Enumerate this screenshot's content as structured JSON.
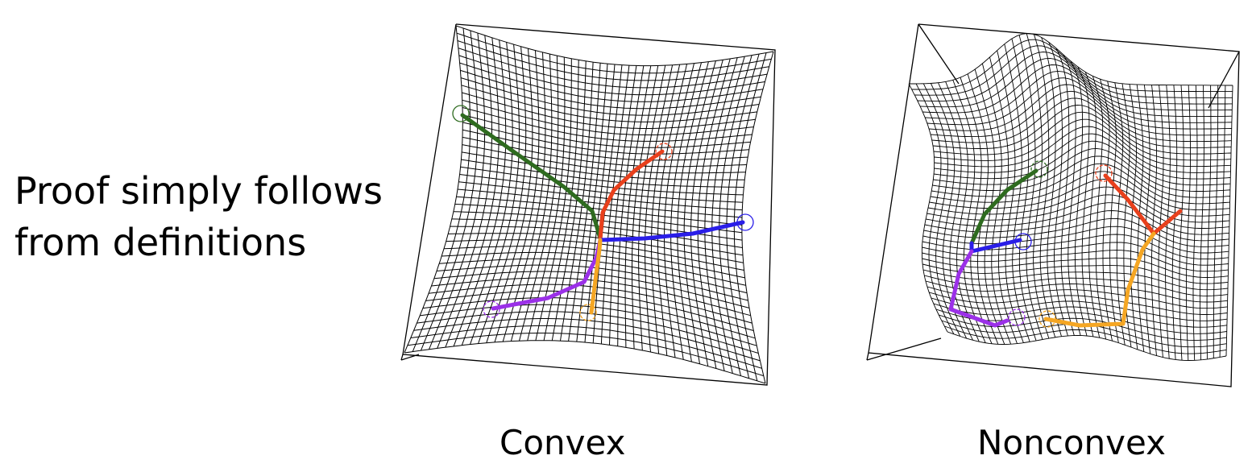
{
  "headline": {
    "line1": "Proof simply follows",
    "line2": "from definitions"
  },
  "panels": [
    {
      "caption": "Convex",
      "paths": [
        {
          "color": "#2e6b1f"
        },
        {
          "color": "#e8401c"
        },
        {
          "color": "#2a1ee8"
        },
        {
          "color": "#9b30e8"
        },
        {
          "color": "#f5a623"
        }
      ]
    },
    {
      "caption": "Nonconvex",
      "paths": [
        {
          "color": "#2e6b1f"
        },
        {
          "color": "#e8401c"
        },
        {
          "color": "#2a1ee8"
        },
        {
          "color": "#9b30e8"
        },
        {
          "color": "#f5a623"
        }
      ]
    }
  ]
}
